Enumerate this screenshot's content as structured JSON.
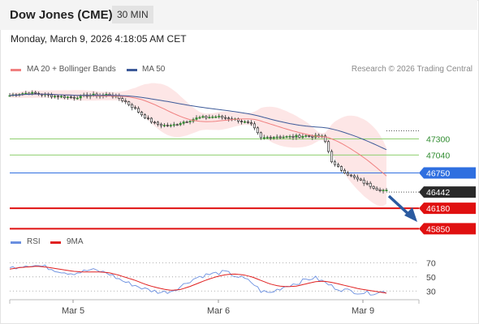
{
  "header": {
    "title": "Dow Jones (CME)",
    "timeframe": "30 MIN"
  },
  "timestamp": "Monday, March 9, 2026 4:18:05 AM CET",
  "legend": {
    "ma20": "MA 20 + Bollinger Bands",
    "ma50": "MA 50",
    "credit": "Research © 2026 Trading Central"
  },
  "rsi_legend": {
    "rsi": "RSI",
    "ma": "9MA"
  },
  "colors": {
    "ma20": "#f08080",
    "ma50": "#3d5a99",
    "bollinger": "#fde0e0",
    "candle_up": "#2e8b2e",
    "resistance": "#8fcf6f",
    "pivot": "#2f6fe0",
    "support": "#e01010",
    "price_tag": "#2a2a2a",
    "arrow": "#2a5aa0",
    "rsi": "#6a8fe0",
    "rsi_ma": "#e02020"
  },
  "chart_data": [
    {
      "type": "candlestick",
      "title": "Dow Jones (CME)",
      "timeframe": "30 MIN",
      "x_labels": [
        "Mar 5",
        "Mar 6",
        "Mar 9"
      ],
      "levels": [
        {
          "value": 47300,
          "kind": "resistance"
        },
        {
          "value": 47040,
          "kind": "resistance"
        },
        {
          "value": 46750,
          "kind": "pivot"
        },
        {
          "value": 46442,
          "kind": "last_price"
        },
        {
          "value": 46180,
          "kind": "support"
        },
        {
          "value": 45850,
          "kind": "support"
        }
      ],
      "series": [
        {
          "name": "MA 20 + Bollinger Bands"
        },
        {
          "name": "MA 50"
        }
      ],
      "close_path": [
        48000,
        48030,
        48040,
        48030,
        48010,
        47990,
        47980,
        47970,
        47985,
        48010,
        48000,
        48020,
        47970,
        47890,
        47780,
        47660,
        47560,
        47520,
        47510,
        47560,
        47600,
        47640,
        47650,
        47660,
        47640,
        47620,
        47580,
        47520,
        47310,
        47330,
        47340,
        47330,
        47340,
        47350,
        47340,
        47330,
        46900,
        46800,
        46700,
        46630,
        46560,
        46490,
        46460
      ],
      "outlook": "bearish"
    },
    {
      "type": "line",
      "title": "RSI",
      "series": [
        {
          "name": "RSI"
        },
        {
          "name": "9MA"
        }
      ],
      "y_ticks": [
        70,
        50,
        30
      ],
      "rsi_path": [
        62,
        65,
        67,
        66,
        64,
        60,
        57,
        55,
        57,
        60,
        58,
        55,
        48,
        42,
        38,
        33,
        30,
        28,
        30,
        36,
        44,
        50,
        53,
        55,
        57,
        52,
        48,
        42,
        30,
        27,
        33,
        38,
        41,
        46,
        49,
        43,
        36,
        32,
        30,
        28,
        27,
        28,
        29
      ],
      "ma_path": [
        61,
        63,
        64,
        65,
        64,
        62,
        60,
        58,
        57,
        57,
        57,
        56,
        53,
        49,
        45,
        40,
        36,
        33,
        31,
        32,
        36,
        41,
        46,
        50,
        53,
        54,
        53,
        50,
        45,
        40,
        37,
        36,
        37,
        40,
        43,
        44,
        42,
        39,
        36,
        33,
        31,
        29,
        27
      ]
    }
  ]
}
